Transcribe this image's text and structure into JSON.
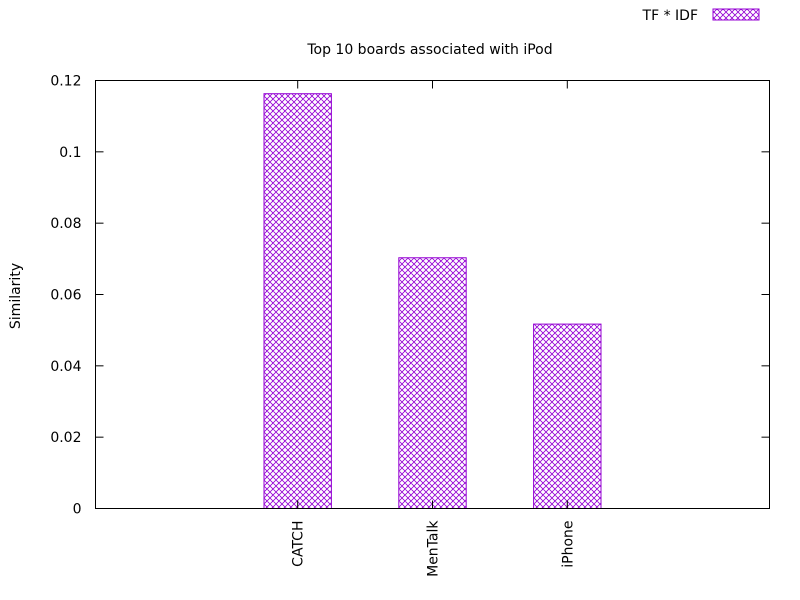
{
  "chart_data": {
    "type": "bar",
    "title": "Top 10 boards associated with iPod",
    "xlabel": "",
    "ylabel": "Similarity",
    "categories": [
      "CATCH",
      "MenTalk",
      "iPhone"
    ],
    "series": [
      {
        "name": "TF * IDF",
        "values": [
          0.1163,
          0.0703,
          0.0517
        ]
      }
    ],
    "ylim": [
      0,
      0.12
    ],
    "yticks": [
      0,
      0.02,
      0.04,
      0.06,
      0.08,
      0.1,
      0.12
    ],
    "grid": false,
    "legend_position": "top-right",
    "bar_color": "#9400d3",
    "fill_pattern": "crosshatch"
  }
}
